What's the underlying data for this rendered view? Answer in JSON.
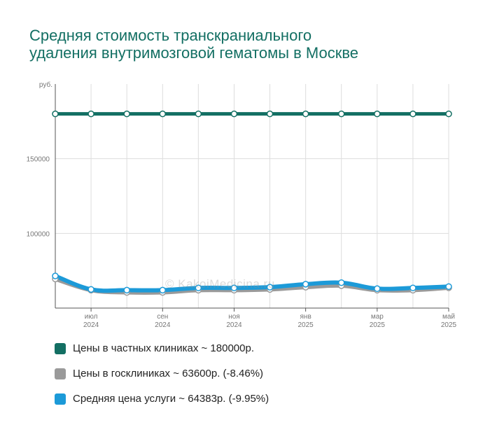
{
  "title": {
    "line1": "Средняя стоимость транскраниального",
    "line2": "удаления внутримозговой гематомы в Москве"
  },
  "watermark": "© KakoiMedicina.ru",
  "colors": {
    "private": "#136f63",
    "public": "#9a9a9a",
    "average": "#1c9ad8",
    "title": "#136f63",
    "grid": "#dddddd"
  },
  "legend": [
    {
      "label": "Цены в частных клиниках ~ 180000р.",
      "color": "#136f63"
    },
    {
      "label": "Цены в госклиниках ~ 63600р. (-8.46%)",
      "color": "#9a9a9a"
    },
    {
      "label": "Средняя цена услуги ~ 64383р. (-9.95%)",
      "color": "#1c9ad8"
    }
  ],
  "chart_data": {
    "type": "line",
    "y_unit": "руб.",
    "ylim": [
      50000,
      200000
    ],
    "y_ticks": [
      100000,
      150000
    ],
    "y_tick_labels": [
      "100000",
      "150000"
    ],
    "x_ticks": [
      {
        "month": "июл",
        "year": "2024"
      },
      {
        "month": "сен",
        "year": "2024"
      },
      {
        "month": "ноя",
        "year": "2024"
      },
      {
        "month": "янв",
        "year": "2025"
      },
      {
        "month": "мар",
        "year": "2025"
      },
      {
        "month": "май",
        "year": "2025"
      }
    ],
    "x": [
      "2024-06",
      "2024-07",
      "2024-08",
      "2024-09",
      "2024-10",
      "2024-11",
      "2024-12",
      "2025-01",
      "2025-02",
      "2025-03",
      "2025-04",
      "2025-05"
    ],
    "series": [
      {
        "name": "Цены в частных клиниках",
        "values": [
          180000,
          180000,
          180000,
          180000,
          180000,
          180000,
          180000,
          180000,
          180000,
          180000,
          180000,
          180000
        ]
      },
      {
        "name": "Цены в госклиниках",
        "values": [
          69500,
          62000,
          60500,
          60500,
          62000,
          62000,
          62500,
          64000,
          65000,
          62000,
          62000,
          63600
        ]
      },
      {
        "name": "Средняя цена услуги",
        "values": [
          71500,
          62500,
          62000,
          62000,
          63500,
          63500,
          64000,
          66000,
          67000,
          63000,
          63500,
          64383
        ]
      }
    ],
    "grid": true,
    "legend_position": "bottom"
  }
}
